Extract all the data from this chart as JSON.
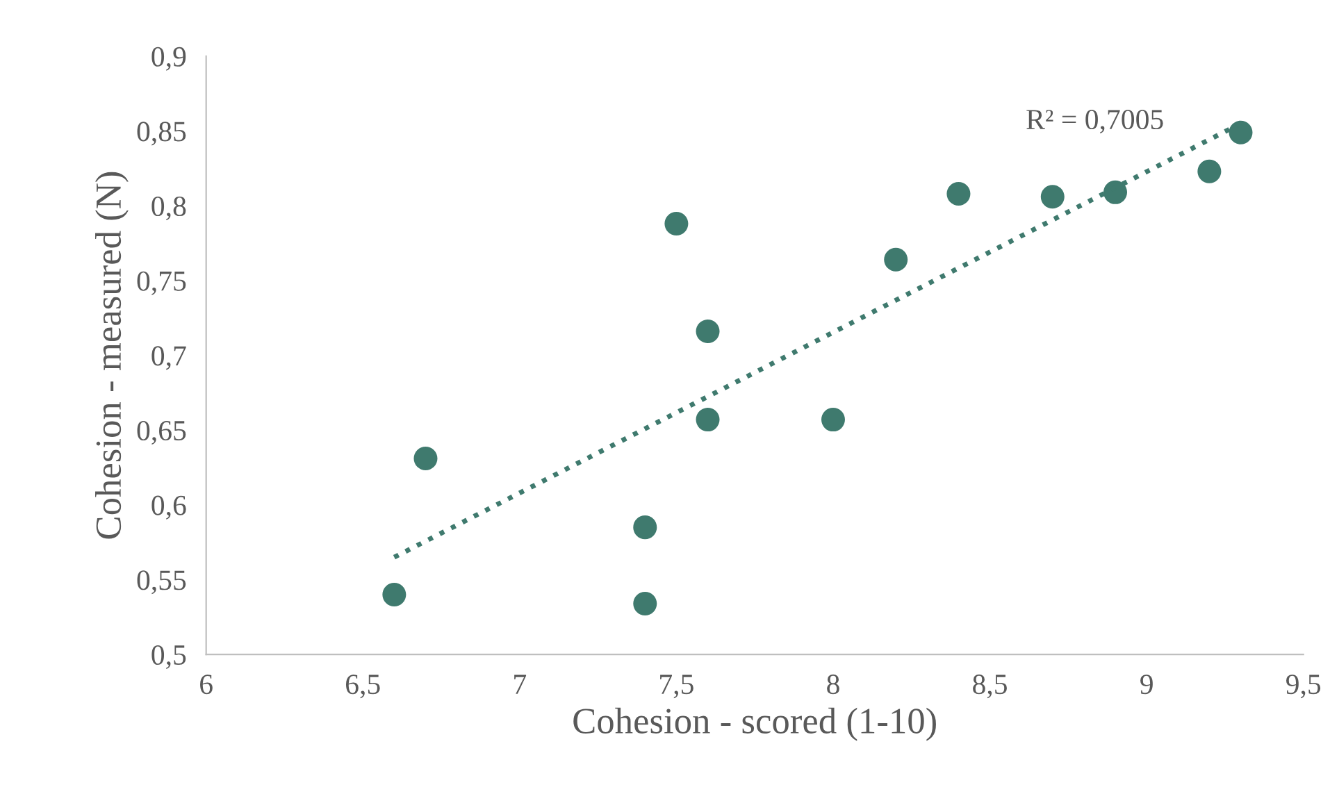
{
  "chart_data": {
    "type": "scatter",
    "xlabel": "Cohesion - scored (1-10)",
    "ylabel": "Cohesion - measured (N)",
    "series": [
      {
        "color": "#3f7a6e",
        "marker": "circle",
        "x": [
          6.6,
          6.7,
          7.4,
          7.4,
          7.5,
          7.6,
          7.6,
          8.0,
          8.2,
          8.4,
          8.7,
          8.9,
          9.2,
          9.3
        ],
        "values": [
          0.54,
          0.631,
          0.585,
          0.534,
          0.788,
          0.716,
          0.657,
          0.657,
          0.764,
          0.808,
          0.806,
          0.809,
          0.823,
          0.849
        ]
      },
      {
        "type": "line",
        "color": "#3f7a6e",
        "line_style": "dotted",
        "marker": "none",
        "x": [
          6.6,
          9.3
        ],
        "values": [
          0.565,
          0.855
        ]
      }
    ],
    "annotations": [
      "R² = 0,7005"
    ],
    "xlim": [
      6,
      9.5
    ],
    "ylim": [
      0.5,
      0.9
    ],
    "xticks": [
      6,
      {
        "value": 6.5,
        "label": "6,5"
      },
      7,
      {
        "value": 7.5,
        "label": "7,5"
      },
      8,
      {
        "value": 8.5,
        "label": "8,5"
      },
      9,
      {
        "value": 9.5,
        "label": "9,5"
      }
    ],
    "yticks": [
      {
        "value": 0.5,
        "label": "0,5"
      },
      {
        "value": 0.55,
        "label": "0,55"
      },
      {
        "value": 0.6,
        "label": "0,6"
      },
      {
        "value": 0.65,
        "label": "0,65"
      },
      {
        "value": 0.7,
        "label": "0,7"
      },
      {
        "value": 0.75,
        "label": "0,75"
      },
      {
        "value": 0.8,
        "label": "0,8"
      },
      {
        "value": 0.85,
        "label": "0,85"
      },
      {
        "value": 0.9,
        "label": "0,9"
      }
    ],
    "grid": false,
    "legend": false
  }
}
